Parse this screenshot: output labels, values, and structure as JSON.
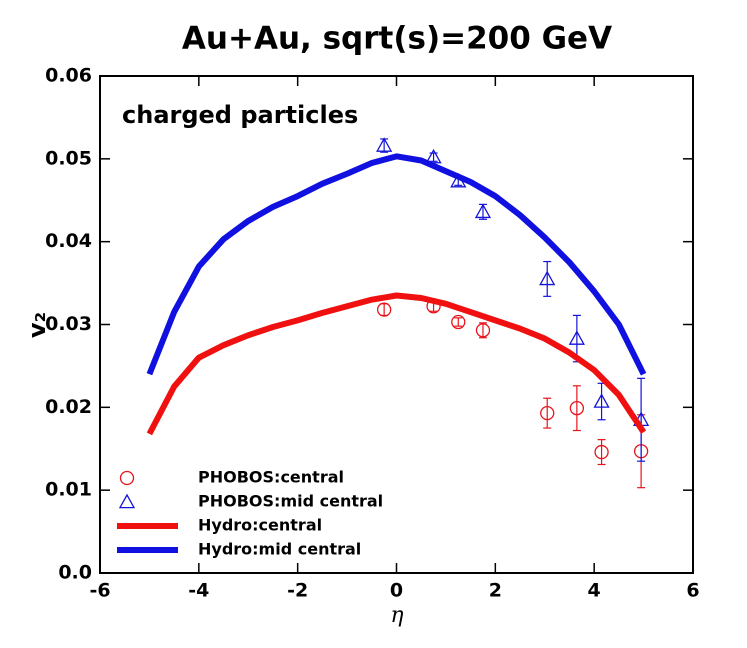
{
  "chart_data": {
    "type": "line",
    "title": "Au+Au, sqrt(s)=200 GeV",
    "annotation": "charged particles",
    "xlabel": "η",
    "ylabel": "v₂",
    "xlim": [
      -6,
      6
    ],
    "xticks": [
      -6,
      -4,
      -2,
      0,
      2,
      4,
      6
    ],
    "ylim": [
      0,
      0.06
    ],
    "yticks": [
      {
        "value": 0,
        "label": "0.0"
      },
      0.01,
      0.02,
      0.03,
      0.04,
      0.05,
      0.06
    ],
    "legend": "lower left",
    "series": [
      {
        "name": "PHOBOS:central",
        "color": "#e8141c",
        "marker": "circle",
        "x": [
          -0.25,
          0.75,
          1.25,
          1.75,
          3.05,
          3.65,
          4.15,
          4.95
        ],
        "values": [
          0.0318,
          0.0322,
          0.0303,
          0.0293,
          0.0193,
          0.0199,
          0.0146,
          0.0147
        ],
        "errors": [
          0.0007,
          0.0006,
          0.0005,
          0.0009,
          0.0018,
          0.0027,
          0.0015,
          0.0044
        ]
      },
      {
        "name": "PHOBOS:mid central",
        "color": "#1414d8",
        "marker": "triangle",
        "x": [
          -0.25,
          0.75,
          1.25,
          1.75,
          3.05,
          3.65,
          4.15,
          4.95
        ],
        "values": [
          0.0516,
          0.0502,
          0.0473,
          0.0436,
          0.0355,
          0.0283,
          0.0207,
          0.0185
        ],
        "errors": [
          0.0008,
          0.0005,
          0.0005,
          0.0009,
          0.0021,
          0.0028,
          0.0022,
          0.005
        ]
      },
      {
        "name": "Hydro:central",
        "color": "#f01010",
        "marker": "line",
        "x": [
          -5,
          -4.5,
          -4,
          -3.5,
          -3,
          -2.5,
          -2,
          -1.5,
          -1,
          -0.5,
          0,
          0.5,
          1,
          1.5,
          2,
          2.5,
          3,
          3.5,
          4,
          4.5,
          5
        ],
        "values": [
          0.0168,
          0.0225,
          0.026,
          0.0275,
          0.0287,
          0.0297,
          0.0305,
          0.0314,
          0.0322,
          0.033,
          0.0335,
          0.0332,
          0.0325,
          0.0315,
          0.0305,
          0.0295,
          0.0283,
          0.0266,
          0.0245,
          0.0215,
          0.017
        ]
      },
      {
        "name": "Hydro:mid central",
        "color": "#1010e0",
        "marker": "line",
        "x": [
          -5,
          -4.5,
          -4,
          -3.5,
          -3,
          -2.5,
          -2,
          -1.5,
          -1,
          -0.5,
          0,
          0.5,
          1,
          1.5,
          2,
          2.5,
          3,
          3.5,
          4,
          4.5,
          5
        ],
        "values": [
          0.024,
          0.0315,
          0.037,
          0.0403,
          0.0425,
          0.0442,
          0.0455,
          0.047,
          0.0482,
          0.0495,
          0.0503,
          0.0498,
          0.0485,
          0.0472,
          0.0455,
          0.0432,
          0.0405,
          0.0375,
          0.034,
          0.03,
          0.024
        ]
      }
    ]
  }
}
